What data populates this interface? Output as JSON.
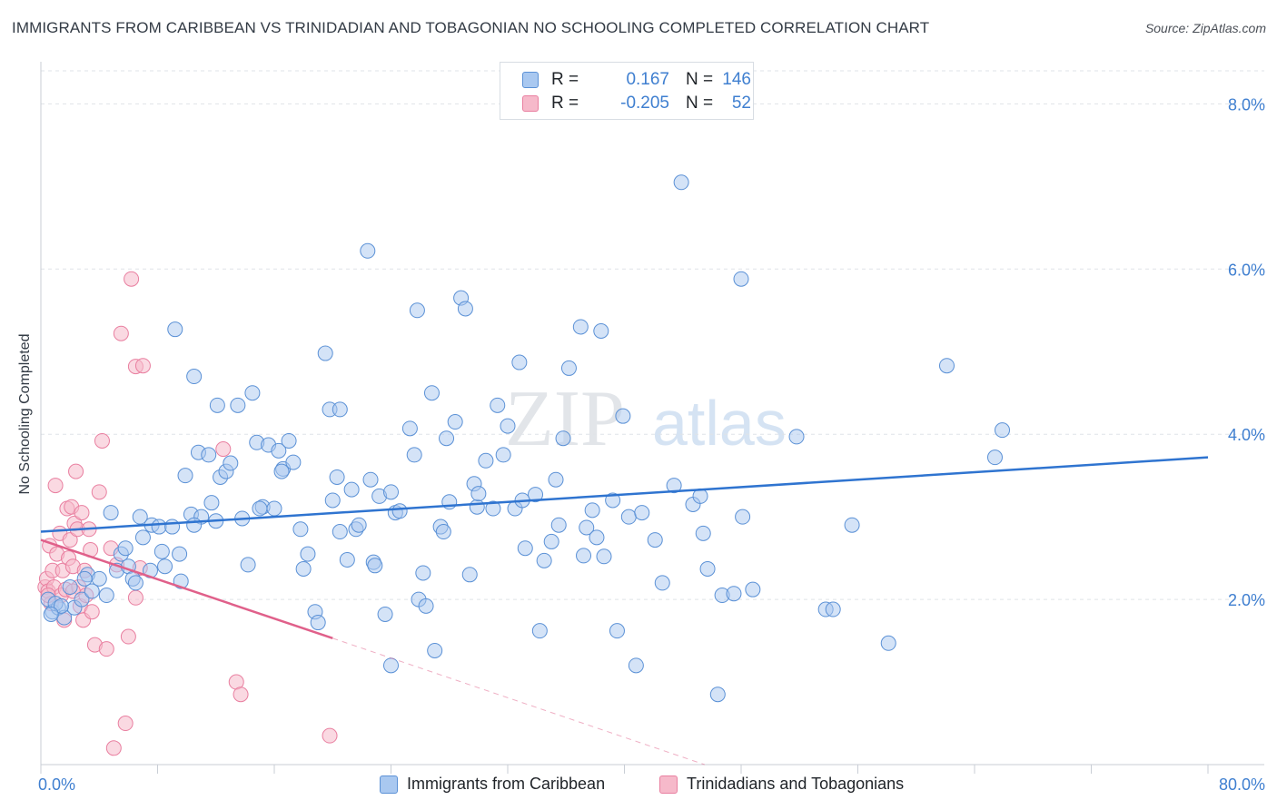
{
  "title": "IMMIGRANTS FROM CARIBBEAN VS TRINIDADIAN AND TOBAGONIAN NO SCHOOLING COMPLETED CORRELATION CHART",
  "source": "Source: ZipAtlas.com",
  "watermark": {
    "zip": "ZIP",
    "atlas": "atlas"
  },
  "legend": {
    "r_label": "R =",
    "n_label": "N =",
    "rows": [
      {
        "name": "Immigrants from Caribbean",
        "r": "0.167",
        "n": "146"
      },
      {
        "name": "Trinidadians and Tobagonians",
        "r": "-0.205",
        "n": "52"
      }
    ]
  },
  "colors": {
    "blue_fill": "#a9c8f0",
    "blue_stroke": "#5b91d6",
    "blue_line": "#2f74d0",
    "pink_fill": "#f6b9ca",
    "pink_stroke": "#e97fa0",
    "pink_line": "#e0608a",
    "tick_label": "#3f7fd0",
    "grid": "#dfe3e8"
  },
  "chart_data": {
    "type": "scatter",
    "title": "IMMIGRANTS FROM CARIBBEAN VS TRINIDADIAN AND TOBAGONIAN NO SCHOOLING COMPLETED CORRELATION CHART",
    "xlabel": "",
    "ylabel": "No Schooling Completed",
    "xlim": [
      0,
      80
    ],
    "ylim": [
      0,
      8.4
    ],
    "x_tick_labels": [
      "0.0%",
      "80.0%"
    ],
    "y_ticks": [
      2,
      4,
      6,
      8
    ],
    "y_tick_labels": [
      "2.0%",
      "4.0%",
      "6.0%",
      "8.0%"
    ],
    "grid": true,
    "series": [
      {
        "name": "Immigrants from Caribbean",
        "trend": {
          "x": [
            0,
            80
          ],
          "y": [
            2.82,
            3.72
          ]
        },
        "points": [
          [
            0.5,
            2.0
          ],
          [
            0.8,
            1.85
          ],
          [
            1.2,
            1.9
          ],
          [
            1.6,
            1.78
          ],
          [
            1.0,
            1.95
          ],
          [
            2.0,
            2.15
          ],
          [
            2.3,
            1.9
          ],
          [
            2.8,
            2.0
          ],
          [
            3.2,
            2.3
          ],
          [
            3.5,
            2.1
          ],
          [
            4.0,
            2.25
          ],
          [
            4.5,
            2.05
          ],
          [
            4.8,
            3.05
          ],
          [
            5.2,
            2.35
          ],
          [
            5.5,
            2.55
          ],
          [
            6.0,
            2.4
          ],
          [
            6.3,
            2.25
          ],
          [
            6.5,
            2.2
          ],
          [
            7.0,
            2.75
          ],
          [
            7.5,
            2.35
          ],
          [
            7.6,
            2.9
          ],
          [
            8.1,
            2.88
          ],
          [
            8.3,
            2.58
          ],
          [
            8.5,
            2.4
          ],
          [
            9.0,
            2.88
          ],
          [
            9.2,
            5.27
          ],
          [
            9.6,
            2.22
          ],
          [
            9.9,
            3.5
          ],
          [
            10.3,
            3.03
          ],
          [
            10.5,
            4.7
          ],
          [
            10.8,
            3.78
          ],
          [
            11.0,
            3.0
          ],
          [
            11.5,
            3.75
          ],
          [
            11.7,
            3.17
          ],
          [
            12.1,
            4.35
          ],
          [
            12.3,
            3.48
          ],
          [
            12.7,
            3.55
          ],
          [
            13.0,
            3.65
          ],
          [
            13.5,
            4.35
          ],
          [
            13.8,
            2.98
          ],
          [
            14.2,
            2.42
          ],
          [
            14.5,
            4.5
          ],
          [
            14.8,
            3.9
          ],
          [
            15.2,
            3.12
          ],
          [
            15.6,
            3.87
          ],
          [
            16.0,
            3.1
          ],
          [
            16.3,
            3.8
          ],
          [
            16.6,
            3.58
          ],
          [
            17.0,
            3.92
          ],
          [
            17.3,
            3.66
          ],
          [
            17.8,
            2.85
          ],
          [
            18.3,
            2.55
          ],
          [
            18.8,
            1.85
          ],
          [
            19.0,
            1.72
          ],
          [
            19.5,
            4.98
          ],
          [
            19.8,
            4.3
          ],
          [
            20.0,
            3.2
          ],
          [
            20.3,
            3.48
          ],
          [
            20.5,
            2.82
          ],
          [
            21.0,
            2.48
          ],
          [
            21.3,
            3.33
          ],
          [
            21.6,
            2.85
          ],
          [
            22.4,
            6.22
          ],
          [
            22.6,
            3.45
          ],
          [
            22.8,
            2.45
          ],
          [
            23.2,
            3.25
          ],
          [
            23.6,
            1.82
          ],
          [
            24.0,
            3.3
          ],
          [
            24.3,
            3.05
          ],
          [
            24.6,
            3.07
          ],
          [
            25.3,
            4.07
          ],
          [
            25.6,
            3.75
          ],
          [
            25.8,
            5.5
          ],
          [
            25.9,
            2.0
          ],
          [
            26.2,
            2.32
          ],
          [
            26.4,
            1.92
          ],
          [
            27.4,
            2.88
          ],
          [
            27.6,
            2.82
          ],
          [
            27.8,
            3.95
          ],
          [
            28.0,
            3.18
          ],
          [
            28.4,
            4.15
          ],
          [
            28.8,
            5.65
          ],
          [
            29.1,
            5.52
          ],
          [
            29.4,
            2.3
          ],
          [
            29.7,
            3.4
          ],
          [
            29.9,
            3.12
          ],
          [
            30.5,
            3.68
          ],
          [
            31.0,
            3.1
          ],
          [
            31.3,
            4.35
          ],
          [
            31.7,
            3.75
          ],
          [
            32.0,
            4.1
          ],
          [
            32.5,
            3.1
          ],
          [
            32.8,
            4.87
          ],
          [
            33.2,
            2.62
          ],
          [
            33.9,
            3.27
          ],
          [
            34.2,
            1.62
          ],
          [
            34.5,
            2.47
          ],
          [
            35.3,
            3.45
          ],
          [
            35.5,
            2.9
          ],
          [
            35.8,
            3.95
          ],
          [
            36.2,
            4.8
          ],
          [
            37.0,
            5.3
          ],
          [
            37.2,
            2.53
          ],
          [
            37.4,
            2.87
          ],
          [
            37.8,
            3.08
          ],
          [
            38.1,
            2.75
          ],
          [
            38.4,
            5.25
          ],
          [
            39.2,
            3.2
          ],
          [
            39.5,
            1.62
          ],
          [
            39.9,
            4.22
          ],
          [
            40.3,
            3.0
          ],
          [
            40.8,
            1.2
          ],
          [
            41.2,
            3.05
          ],
          [
            42.1,
            2.72
          ],
          [
            42.6,
            2.2
          ],
          [
            43.4,
            3.38
          ],
          [
            44.7,
            3.15
          ],
          [
            45.2,
            3.25
          ],
          [
            45.4,
            2.8
          ],
          [
            45.7,
            2.37
          ],
          [
            46.7,
            2.05
          ],
          [
            47.5,
            2.07
          ],
          [
            48.1,
            3.0
          ],
          [
            48.8,
            2.12
          ],
          [
            51.8,
            3.97
          ],
          [
            53.8,
            1.88
          ],
          [
            54.3,
            1.88
          ],
          [
            55.6,
            2.9
          ],
          [
            58.1,
            1.47
          ],
          [
            62.1,
            4.83
          ],
          [
            65.4,
            3.72
          ],
          [
            65.9,
            4.05
          ],
          [
            43.9,
            7.05
          ],
          [
            48.0,
            5.88
          ],
          [
            46.4,
            0.85
          ],
          [
            27.0,
            1.38
          ],
          [
            20.5,
            4.3
          ],
          [
            15.0,
            3.1
          ],
          [
            24.0,
            1.2
          ],
          [
            12.0,
            2.95
          ],
          [
            33.0,
            3.2
          ],
          [
            26.8,
            4.5
          ],
          [
            10.5,
            2.9
          ],
          [
            35.0,
            2.7
          ],
          [
            5.8,
            2.62
          ],
          [
            3.0,
            2.25
          ],
          [
            1.4,
            1.92
          ],
          [
            0.7,
            1.82
          ],
          [
            22.9,
            2.41
          ],
          [
            18.0,
            2.37
          ],
          [
            30.0,
            3.28
          ],
          [
            38.6,
            2.52
          ],
          [
            16.5,
            3.55
          ],
          [
            9.5,
            2.55
          ],
          [
            6.8,
            3.0
          ],
          [
            21.8,
            2.9
          ]
        ]
      },
      {
        "name": "Trinidadians and Tobagonians",
        "trend": {
          "x": [
            0,
            20
          ],
          "y": [
            2.72,
            1.53
          ]
        },
        "trend_dashed": {
          "x": [
            20,
            45.5
          ],
          "y": [
            1.53,
            0.0
          ]
        },
        "points": [
          [
            0.3,
            2.15
          ],
          [
            0.4,
            2.25
          ],
          [
            0.5,
            2.1
          ],
          [
            0.6,
            2.65
          ],
          [
            0.7,
            1.95
          ],
          [
            0.8,
            2.35
          ],
          [
            0.9,
            2.15
          ],
          [
            1.0,
            3.38
          ],
          [
            1.1,
            2.55
          ],
          [
            1.3,
            2.8
          ],
          [
            1.4,
            2.05
          ],
          [
            1.5,
            2.35
          ],
          [
            1.6,
            1.75
          ],
          [
            1.7,
            2.12
          ],
          [
            1.8,
            3.1
          ],
          [
            1.9,
            2.5
          ],
          [
            2.0,
            2.72
          ],
          [
            2.1,
            3.12
          ],
          [
            2.2,
            2.4
          ],
          [
            2.3,
            2.92
          ],
          [
            2.4,
            3.55
          ],
          [
            2.5,
            2.85
          ],
          [
            2.6,
            2.15
          ],
          [
            2.7,
            1.92
          ],
          [
            2.8,
            3.05
          ],
          [
            2.9,
            1.75
          ],
          [
            3.0,
            2.35
          ],
          [
            3.1,
            2.05
          ],
          [
            3.3,
            2.85
          ],
          [
            3.5,
            1.85
          ],
          [
            3.7,
            1.45
          ],
          [
            4.0,
            3.3
          ],
          [
            4.2,
            3.92
          ],
          [
            4.5,
            1.4
          ],
          [
            4.8,
            2.62
          ],
          [
            5.0,
            0.2
          ],
          [
            5.2,
            2.42
          ],
          [
            5.5,
            5.22
          ],
          [
            5.8,
            0.5
          ],
          [
            6.0,
            1.55
          ],
          [
            6.2,
            5.88
          ],
          [
            6.5,
            2.02
          ],
          [
            6.8,
            2.38
          ],
          [
            6.5,
            4.82
          ],
          [
            7.0,
            4.83
          ],
          [
            12.5,
            3.82
          ],
          [
            13.4,
            1.0
          ],
          [
            13.7,
            0.85
          ],
          [
            19.8,
            0.35
          ],
          [
            3.4,
            2.6
          ],
          [
            0.5,
            2.05
          ],
          [
            2.2,
            2.1
          ]
        ]
      }
    ]
  }
}
